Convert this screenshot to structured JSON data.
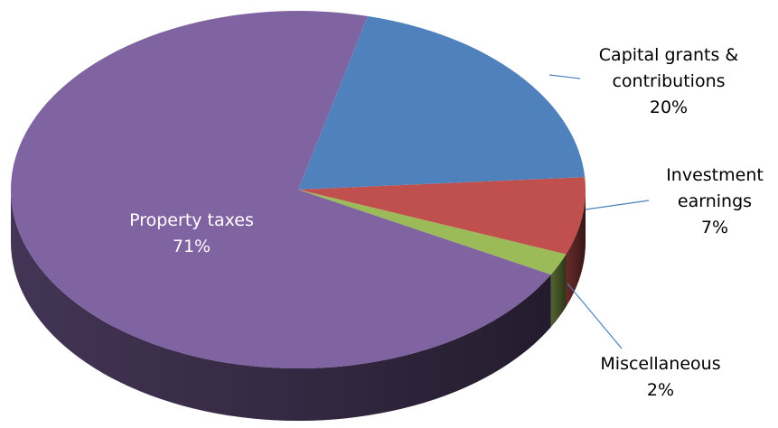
{
  "chart_data": {
    "type": "pie",
    "title": "",
    "slices": [
      {
        "name": "Capital grants & contributions",
        "label_lines": [
          "Capital grants &",
          "contributions"
        ],
        "value": 20,
        "pct_label": "20%",
        "color": "#4F81BD"
      },
      {
        "name": "Investment earnings",
        "label_lines": [
          "Investment",
          "earnings"
        ],
        "value": 7,
        "pct_label": "7%",
        "color": "#C0504D"
      },
      {
        "name": "Miscellaneous",
        "label_lines": [
          "Miscellaneous"
        ],
        "value": 2,
        "pct_label": "2%",
        "color": "#9BBB59"
      },
      {
        "name": "Property taxes",
        "label_lines": [
          "Property taxes"
        ],
        "value": 71,
        "pct_label": "71%",
        "color": "#8064A2"
      }
    ],
    "style": "3d-pie",
    "legend": "none"
  }
}
